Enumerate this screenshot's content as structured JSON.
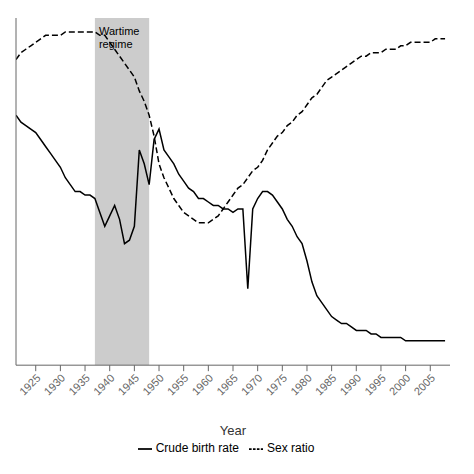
{
  "chart_data": {
    "type": "line",
    "xlabel": "Year",
    "x": [
      1921,
      1922,
      1923,
      1924,
      1925,
      1926,
      1927,
      1928,
      1929,
      1930,
      1931,
      1932,
      1933,
      1934,
      1935,
      1936,
      1937,
      1938,
      1939,
      1940,
      1941,
      1942,
      1943,
      1944,
      1945,
      1946,
      1947,
      1948,
      1949,
      1950,
      1951,
      1952,
      1953,
      1954,
      1955,
      1956,
      1957,
      1958,
      1959,
      1960,
      1961,
      1962,
      1963,
      1964,
      1965,
      1966,
      1967,
      1968,
      1969,
      1970,
      1971,
      1972,
      1973,
      1974,
      1975,
      1976,
      1977,
      1978,
      1979,
      1980,
      1981,
      1982,
      1983,
      1984,
      1985,
      1986,
      1987,
      1988,
      1989,
      1990,
      1991,
      1992,
      1993,
      1994,
      1995,
      1996,
      1997,
      1998,
      1999,
      2000,
      2001,
      2002,
      2003,
      2004,
      2005,
      2006,
      2007,
      2008
    ],
    "series": [
      {
        "name": "Crude birth rate",
        "color": "#000000",
        "line_style": "solid",
        "values": [
          72,
          70,
          69,
          68,
          67,
          65,
          63,
          61,
          59,
          57,
          54,
          52,
          50,
          50,
          49,
          49,
          48,
          44,
          40,
          43,
          46,
          42,
          35,
          36,
          40,
          62,
          58,
          52,
          65,
          68,
          62,
          60,
          58,
          55,
          53,
          51,
          50,
          48,
          48,
          47,
          46,
          46,
          45,
          45,
          44,
          45,
          45,
          22,
          45,
          48,
          50,
          50,
          49,
          47,
          45,
          42,
          40,
          37,
          35,
          30,
          24,
          20,
          18,
          16,
          14,
          13,
          12,
          12,
          11,
          10,
          10,
          10,
          9,
          9,
          8,
          8,
          8,
          8,
          8,
          7,
          7,
          7,
          7,
          7,
          7,
          7,
          7,
          7
        ]
      },
      {
        "name": "Sex ratio",
        "color": "#000000",
        "line_style": "dashed",
        "values": [
          88,
          90,
          91,
          92,
          93,
          94,
          95,
          95,
          95,
          95,
          96,
          96,
          96,
          96,
          96,
          96,
          96,
          95,
          95,
          93,
          91,
          89,
          87,
          85,
          83,
          79,
          76,
          72,
          66,
          58,
          54,
          51,
          48,
          46,
          44,
          43,
          42,
          41,
          41,
          41,
          42,
          43,
          45,
          47,
          49,
          51,
          52,
          54,
          56,
          57,
          59,
          62,
          64,
          66,
          67,
          69,
          70,
          72,
          73,
          75,
          77,
          78,
          80,
          82,
          83,
          84,
          85,
          86,
          87,
          88,
          89,
          89,
          90,
          90,
          90,
          91,
          91,
          91,
          92,
          92,
          93,
          93,
          93,
          93,
          93,
          94,
          94,
          94
        ]
      }
    ],
    "xlim": [
      1921,
      2009
    ],
    "xticks": [
      1925,
      1930,
      1935,
      1940,
      1945,
      1950,
      1955,
      1960,
      1965,
      1970,
      1975,
      1980,
      1985,
      1990,
      1995,
      2000,
      2005
    ],
    "ylim": [
      0,
      100
    ],
    "yticks": [],
    "tick_labels": "x",
    "grid": false,
    "legend": "bottom",
    "shade": {
      "from": 1937,
      "to": 1948,
      "label": "Wartime\nregime",
      "color": "#cccccc"
    }
  }
}
